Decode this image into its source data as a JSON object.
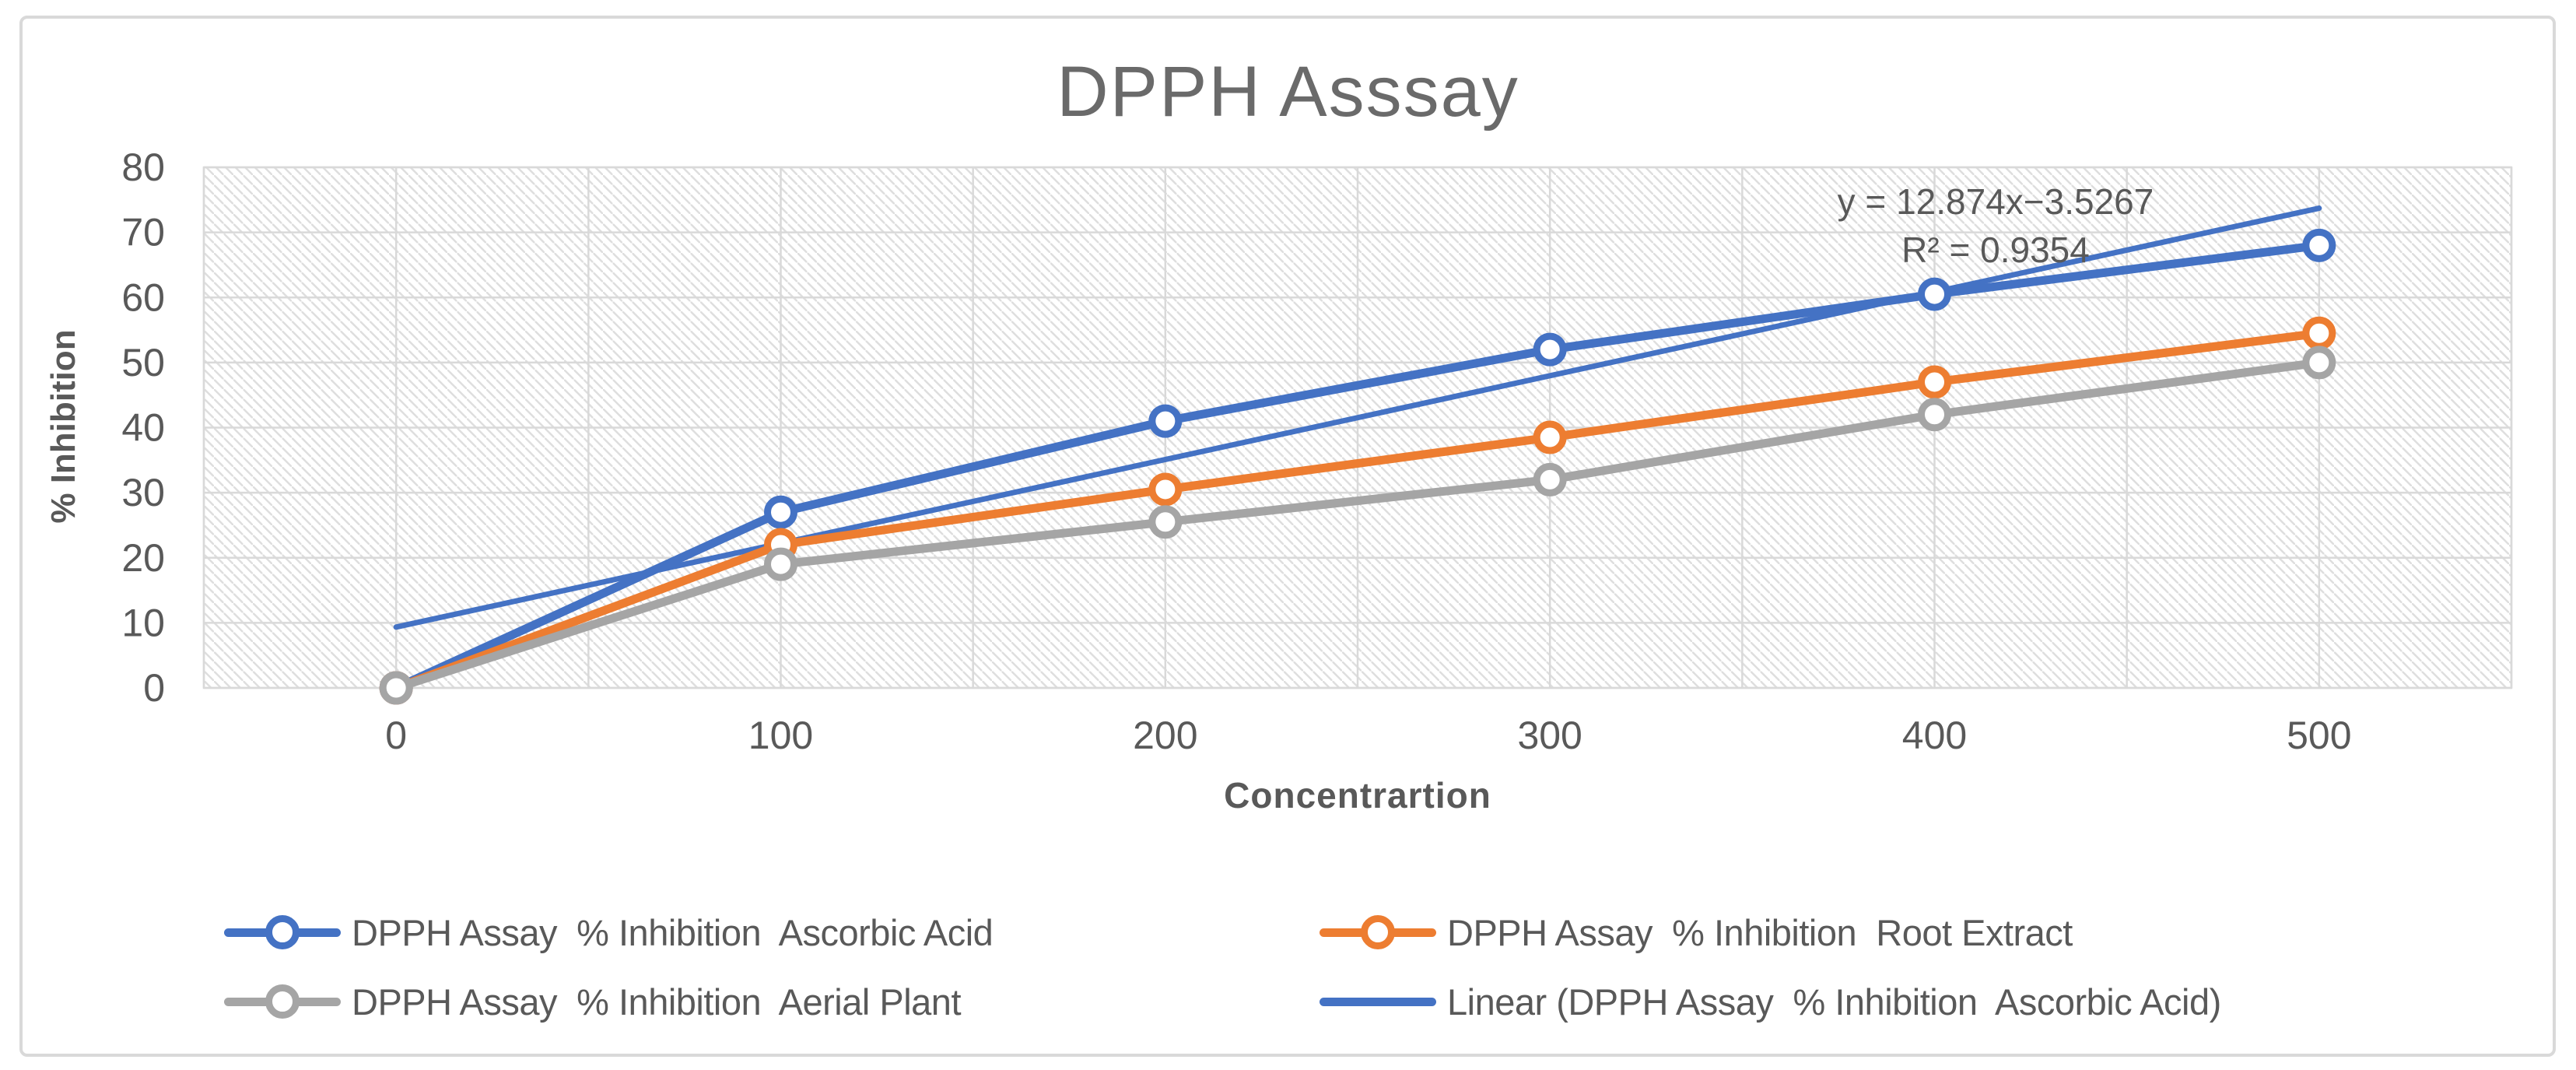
{
  "chart": {
    "title": "DPPH Asssay",
    "xlabel": "Concentrartion",
    "ylabel": "% Inhibition"
  },
  "chart_data": {
    "type": "line",
    "title": "DPPH Asssay",
    "xlabel": "Concentrartion",
    "ylabel": "% Inhibition",
    "categories": [
      0,
      100,
      200,
      300,
      400,
      500
    ],
    "y_ticks": [
      0,
      10,
      20,
      30,
      40,
      50,
      60,
      70,
      80
    ],
    "ylim": [
      0,
      80
    ],
    "grid": true,
    "plot_fill": "light-downward-diagonal-hatch",
    "legend_position": "bottom",
    "series": [
      {
        "id": "ascorbic-acid",
        "name": "DPPH Assay  % Inhibition  Ascorbic Acid",
        "color": "#4472C4",
        "marker": "open-circle",
        "values": [
          0,
          27,
          41,
          52,
          60.5,
          68
        ]
      },
      {
        "id": "root-extract",
        "name": "DPPH Assay  % Inhibition  Root Extract",
        "color": "#ED7D31",
        "marker": "open-circle",
        "values": [
          0,
          22,
          30.5,
          38.5,
          47,
          54.5
        ]
      },
      {
        "id": "aerial-plant",
        "name": "DPPH Assay  % Inhibition  Aerial Plant",
        "color": "#A5A5A5",
        "marker": "open-circle",
        "values": [
          0,
          19,
          25.5,
          32,
          42,
          50
        ]
      }
    ],
    "trendline": {
      "id": "linear-ascorbic-acid",
      "name": "Linear (DPPH Assay  % Inhibition  Ascorbic Acid)",
      "color": "#4472C4",
      "equation": "y = 12.874x−3.5267",
      "r2_label": "R² = 0.9354",
      "slope": 12.874,
      "intercept": -3.5267,
      "x_index_domain": [
        1,
        6
      ]
    },
    "colors": {
      "grid": "#D9D9D9",
      "hatch": "#DEDEDE",
      "text": "#595959",
      "title": "#6A6A6A"
    }
  }
}
